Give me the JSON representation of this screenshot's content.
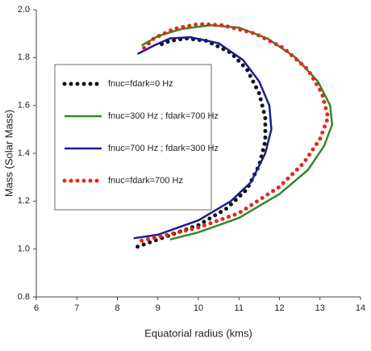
{
  "chart_data": {
    "type": "line",
    "xlabel": "Equatorial radius (kms)",
    "ylabel": "Mass (Solar Mass)",
    "xlim": [
      6,
      14
    ],
    "xticks": [
      6,
      7,
      8,
      9,
      10,
      11,
      12,
      13,
      14
    ],
    "ylim": [
      0.8,
      2.0
    ],
    "yticks": [
      0.8,
      {
        "value": 1.0,
        "label": "1.0"
      },
      1.2,
      1.4,
      1.6,
      1.8,
      {
        "value": 2.0,
        "label": "2.0"
      }
    ],
    "legend": "upper left",
    "series": [
      {
        "name": "fnuc=fdark=0 Hz",
        "color": "#111111",
        "line_style": "dotted",
        "x": [
          8.5,
          9.0,
          10.0,
          10.7,
          11.2,
          11.5,
          11.65,
          11.65,
          11.5,
          11.2,
          10.8,
          10.2,
          9.7,
          9.3,
          9.0
        ],
        "values": [
          1.01,
          1.04,
          1.1,
          1.17,
          1.25,
          1.35,
          1.45,
          1.55,
          1.65,
          1.75,
          1.82,
          1.87,
          1.88,
          1.87,
          1.85
        ]
      },
      {
        "name": "fnuc=300 Hz ; fdark=700 Hz",
        "color": "#2e8b22",
        "line_style": "solid",
        "x": [
          9.3,
          10.0,
          11.0,
          12.0,
          12.7,
          13.1,
          13.3,
          13.25,
          12.95,
          12.4,
          11.7,
          11.0,
          10.3,
          9.6,
          9.0,
          8.6
        ],
        "values": [
          1.04,
          1.07,
          1.13,
          1.23,
          1.33,
          1.43,
          1.52,
          1.6,
          1.7,
          1.8,
          1.88,
          1.925,
          1.935,
          1.92,
          1.89,
          1.85
        ]
      },
      {
        "name": "fnuc=700 Hz ; fdark=300 Hz",
        "color": "#1c1c8c",
        "line_style": "solid",
        "x": [
          8.4,
          9.0,
          10.0,
          10.8,
          11.3,
          11.65,
          11.8,
          11.75,
          11.5,
          11.1,
          10.5,
          9.8,
          9.3,
          8.9,
          8.5
        ],
        "values": [
          1.045,
          1.06,
          1.12,
          1.2,
          1.28,
          1.4,
          1.5,
          1.6,
          1.7,
          1.79,
          1.86,
          1.885,
          1.88,
          1.85,
          1.815
        ]
      },
      {
        "name": "fnuc=fdark=700 Hz",
        "color": "#e8261c",
        "line_style": "dotted",
        "x": [
          8.6,
          9.0,
          10.0,
          11.0,
          12.0,
          12.6,
          13.0,
          13.2,
          13.05,
          12.7,
          12.1,
          11.4,
          10.6,
          10.0,
          9.4,
          8.9,
          8.6
        ],
        "values": [
          1.035,
          1.05,
          1.09,
          1.15,
          1.26,
          1.36,
          1.46,
          1.55,
          1.65,
          1.75,
          1.84,
          1.9,
          1.935,
          1.94,
          1.92,
          1.88,
          1.83
        ]
      }
    ]
  }
}
